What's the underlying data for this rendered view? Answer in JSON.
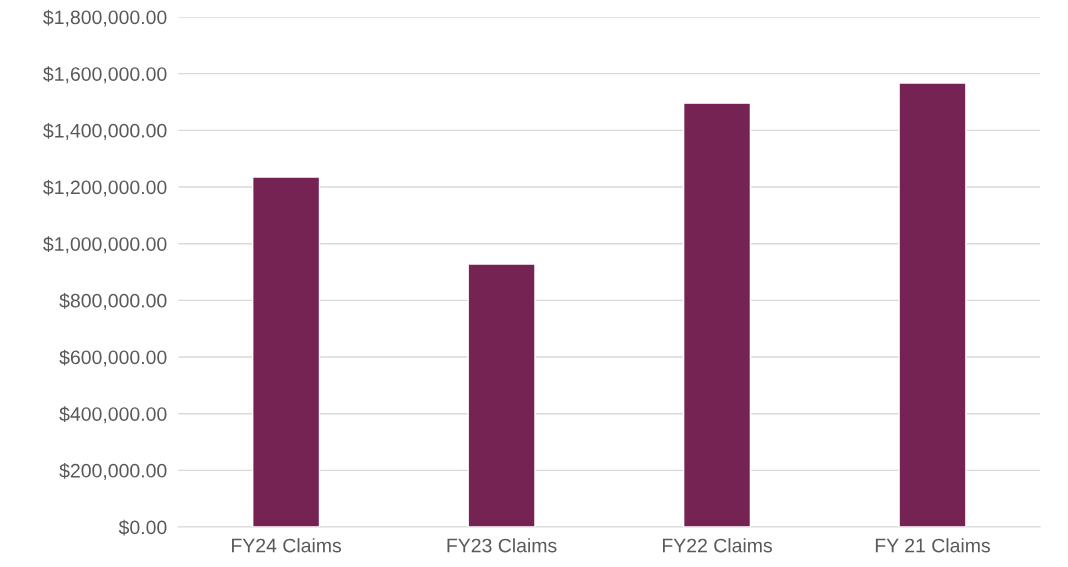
{
  "chart_data": {
    "type": "bar",
    "categories": [
      "FY24 Claims",
      "FY23 Claims",
      "FY22 Claims",
      "FY 21 Claims"
    ],
    "values": [
      1235000,
      928000,
      1496000,
      1567000
    ],
    "color": "#742353",
    "ylim": [
      0,
      1800000
    ],
    "yticks": [
      {
        "value": 0,
        "label": "$0.00"
      },
      {
        "value": 200000,
        "label": "$200,000.00"
      },
      {
        "value": 400000,
        "label": "$400,000.00"
      },
      {
        "value": 600000,
        "label": "$600,000.00"
      },
      {
        "value": 800000,
        "label": "$800,000.00"
      },
      {
        "value": 1000000,
        "label": "$1,000,000.00"
      },
      {
        "value": 1200000,
        "label": "$1,200,000.00"
      },
      {
        "value": 1400000,
        "label": "$1,400,000.00"
      },
      {
        "value": 1600000,
        "label": "$1,600,000.00"
      },
      {
        "value": 1800000,
        "label": "$1,800,000.00"
      }
    ],
    "grid": "y"
  }
}
